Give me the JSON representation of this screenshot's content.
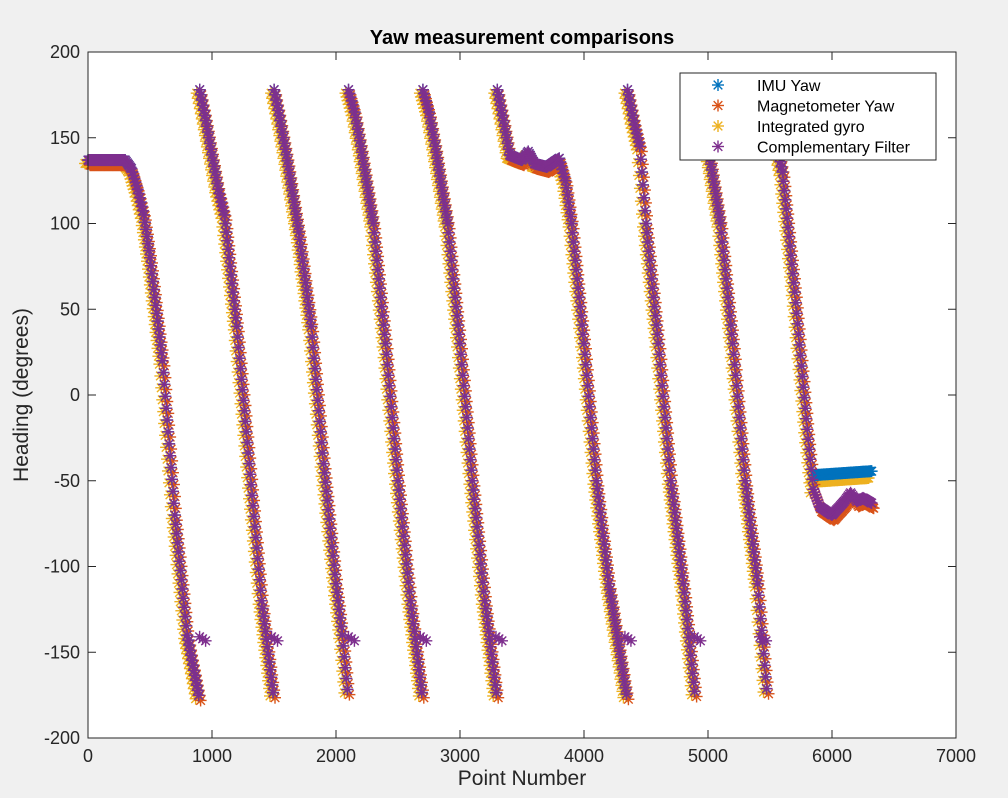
{
  "chart_data": {
    "type": "scatter",
    "title": "Yaw measurement comparisons",
    "xlabel": "Point Number",
    "ylabel": "Heading (degrees)",
    "xlim": [
      0,
      7000
    ],
    "ylim": [
      -200,
      200
    ],
    "xticks": [
      0,
      1000,
      2000,
      3000,
      4000,
      5000,
      6000,
      7000
    ],
    "yticks": [
      -200,
      -150,
      -100,
      -50,
      0,
      50,
      100,
      150,
      200
    ],
    "marker": "asterisk",
    "grid": false,
    "legend_position": "top-right",
    "series": [
      {
        "name": "IMU Yaw",
        "color": "#0072BD",
        "offset": 0,
        "x": [],
        "y": []
      },
      {
        "name": "Magnetometer Yaw",
        "color": "#D95319",
        "offset": -3,
        "x": [],
        "y": []
      },
      {
        "name": "Integrated gyro",
        "color": "#EDB120",
        "offset": -2,
        "x": [],
        "y": []
      },
      {
        "name": "Complementary Filter",
        "color": "#7E2F8E",
        "offset": 0,
        "x": [],
        "y": []
      }
    ],
    "trajectory": [
      [
        0,
        137
      ],
      [
        300,
        137
      ],
      [
        350,
        132
      ],
      [
        400,
        120
      ],
      [
        450,
        105
      ],
      [
        500,
        80
      ],
      [
        600,
        20
      ],
      [
        700,
        -70
      ],
      [
        800,
        -140
      ],
      [
        900,
        -178
      ],
      [
        901,
        178
      ],
      [
        950,
        160
      ],
      [
        1000,
        140
      ],
      [
        1050,
        120
      ],
      [
        1100,
        105
      ],
      [
        1200,
        40
      ],
      [
        1300,
        -40
      ],
      [
        1400,
        -120
      ],
      [
        1500,
        -178
      ],
      [
        1501,
        178
      ],
      [
        1550,
        160
      ],
      [
        1600,
        140
      ],
      [
        1700,
        95
      ],
      [
        1800,
        40
      ],
      [
        1900,
        -40
      ],
      [
        2000,
        -110
      ],
      [
        2050,
        -140
      ],
      [
        2100,
        -178
      ],
      [
        2101,
        178
      ],
      [
        2150,
        165
      ],
      [
        2200,
        145
      ],
      [
        2300,
        100
      ],
      [
        2400,
        30
      ],
      [
        2500,
        -50
      ],
      [
        2600,
        -120
      ],
      [
        2700,
        -178
      ],
      [
        2701,
        178
      ],
      [
        2750,
        165
      ],
      [
        2800,
        145
      ],
      [
        2900,
        100
      ],
      [
        3000,
        30
      ],
      [
        3100,
        -50
      ],
      [
        3200,
        -120
      ],
      [
        3300,
        -178
      ],
      [
        3301,
        178
      ],
      [
        3350,
        160
      ],
      [
        3400,
        140
      ],
      [
        3500,
        137
      ],
      [
        3550,
        142
      ],
      [
        3600,
        135
      ],
      [
        3700,
        133
      ],
      [
        3800,
        138
      ],
      [
        3850,
        125
      ],
      [
        3900,
        100
      ],
      [
        4000,
        30
      ],
      [
        4100,
        -50
      ],
      [
        4200,
        -110
      ],
      [
        4350,
        -178
      ],
      [
        4351,
        178
      ],
      [
        4400,
        160
      ],
      [
        4450,
        145
      ],
      [
        4500,
        100
      ],
      [
        4600,
        30
      ],
      [
        4700,
        -50
      ],
      [
        4800,
        -110
      ],
      [
        4900,
        -178
      ],
      [
        4901,
        178
      ],
      [
        4950,
        165
      ],
      [
        5000,
        145
      ],
      [
        5100,
        100
      ],
      [
        5200,
        30
      ],
      [
        5300,
        -50
      ],
      [
        5400,
        -110
      ],
      [
        5480,
        -178
      ],
      [
        5481,
        178
      ],
      [
        5520,
        160
      ],
      [
        5600,
        130
      ],
      [
        5700,
        60
      ],
      [
        5800,
        -20
      ],
      [
        5850,
        -55
      ],
      [
        5900,
        -65
      ],
      [
        6000,
        -70
      ],
      [
        6100,
        -62
      ],
      [
        6150,
        -57
      ],
      [
        6200,
        -62
      ],
      [
        6250,
        -60
      ],
      [
        6320,
        -63
      ]
    ],
    "jump_marks": [
      [
        900,
        -141
      ],
      [
        1480,
        -141
      ],
      [
        2100,
        -141
      ],
      [
        2680,
        -141
      ],
      [
        3290,
        -141
      ],
      [
        4330,
        -141
      ],
      [
        4890,
        -141
      ],
      [
        5420,
        -141
      ]
    ],
    "tail_divergence": {
      "x_start": 5800,
      "imu_gyro_level": -47
    }
  }
}
